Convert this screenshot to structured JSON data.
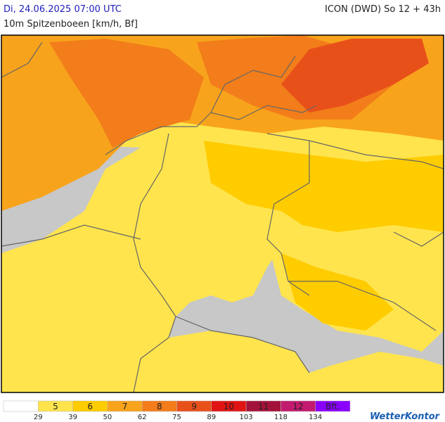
{
  "header": {
    "datetime": "Di, 24.06.2025 07:00 UTC",
    "model": "ICON (DWD) So 12 + 43h",
    "subtitle": "10m Spitzenboeen [km/h, Bf]"
  },
  "legend": {
    "classes": [
      {
        "label": null,
        "color": "#ffffff"
      },
      {
        "label": 5,
        "color": "#ffe44d"
      },
      {
        "label": 6,
        "color": "#ffcc00"
      },
      {
        "label": 7,
        "color": "#f8a31c"
      },
      {
        "label": 8,
        "color": "#f27d1a"
      },
      {
        "label": 9,
        "color": "#e8501a"
      },
      {
        "label": 10,
        "color": "#e01414"
      },
      {
        "label": 11,
        "color": "#a3123a"
      },
      {
        "label": 12,
        "color": "#c21a6e"
      },
      {
        "label": "Bft.",
        "color": "#8a00ff"
      }
    ],
    "thresholds": [
      29,
      39,
      50,
      62,
      75,
      89,
      103,
      118,
      134
    ]
  },
  "logo": "WetterKontor"
}
